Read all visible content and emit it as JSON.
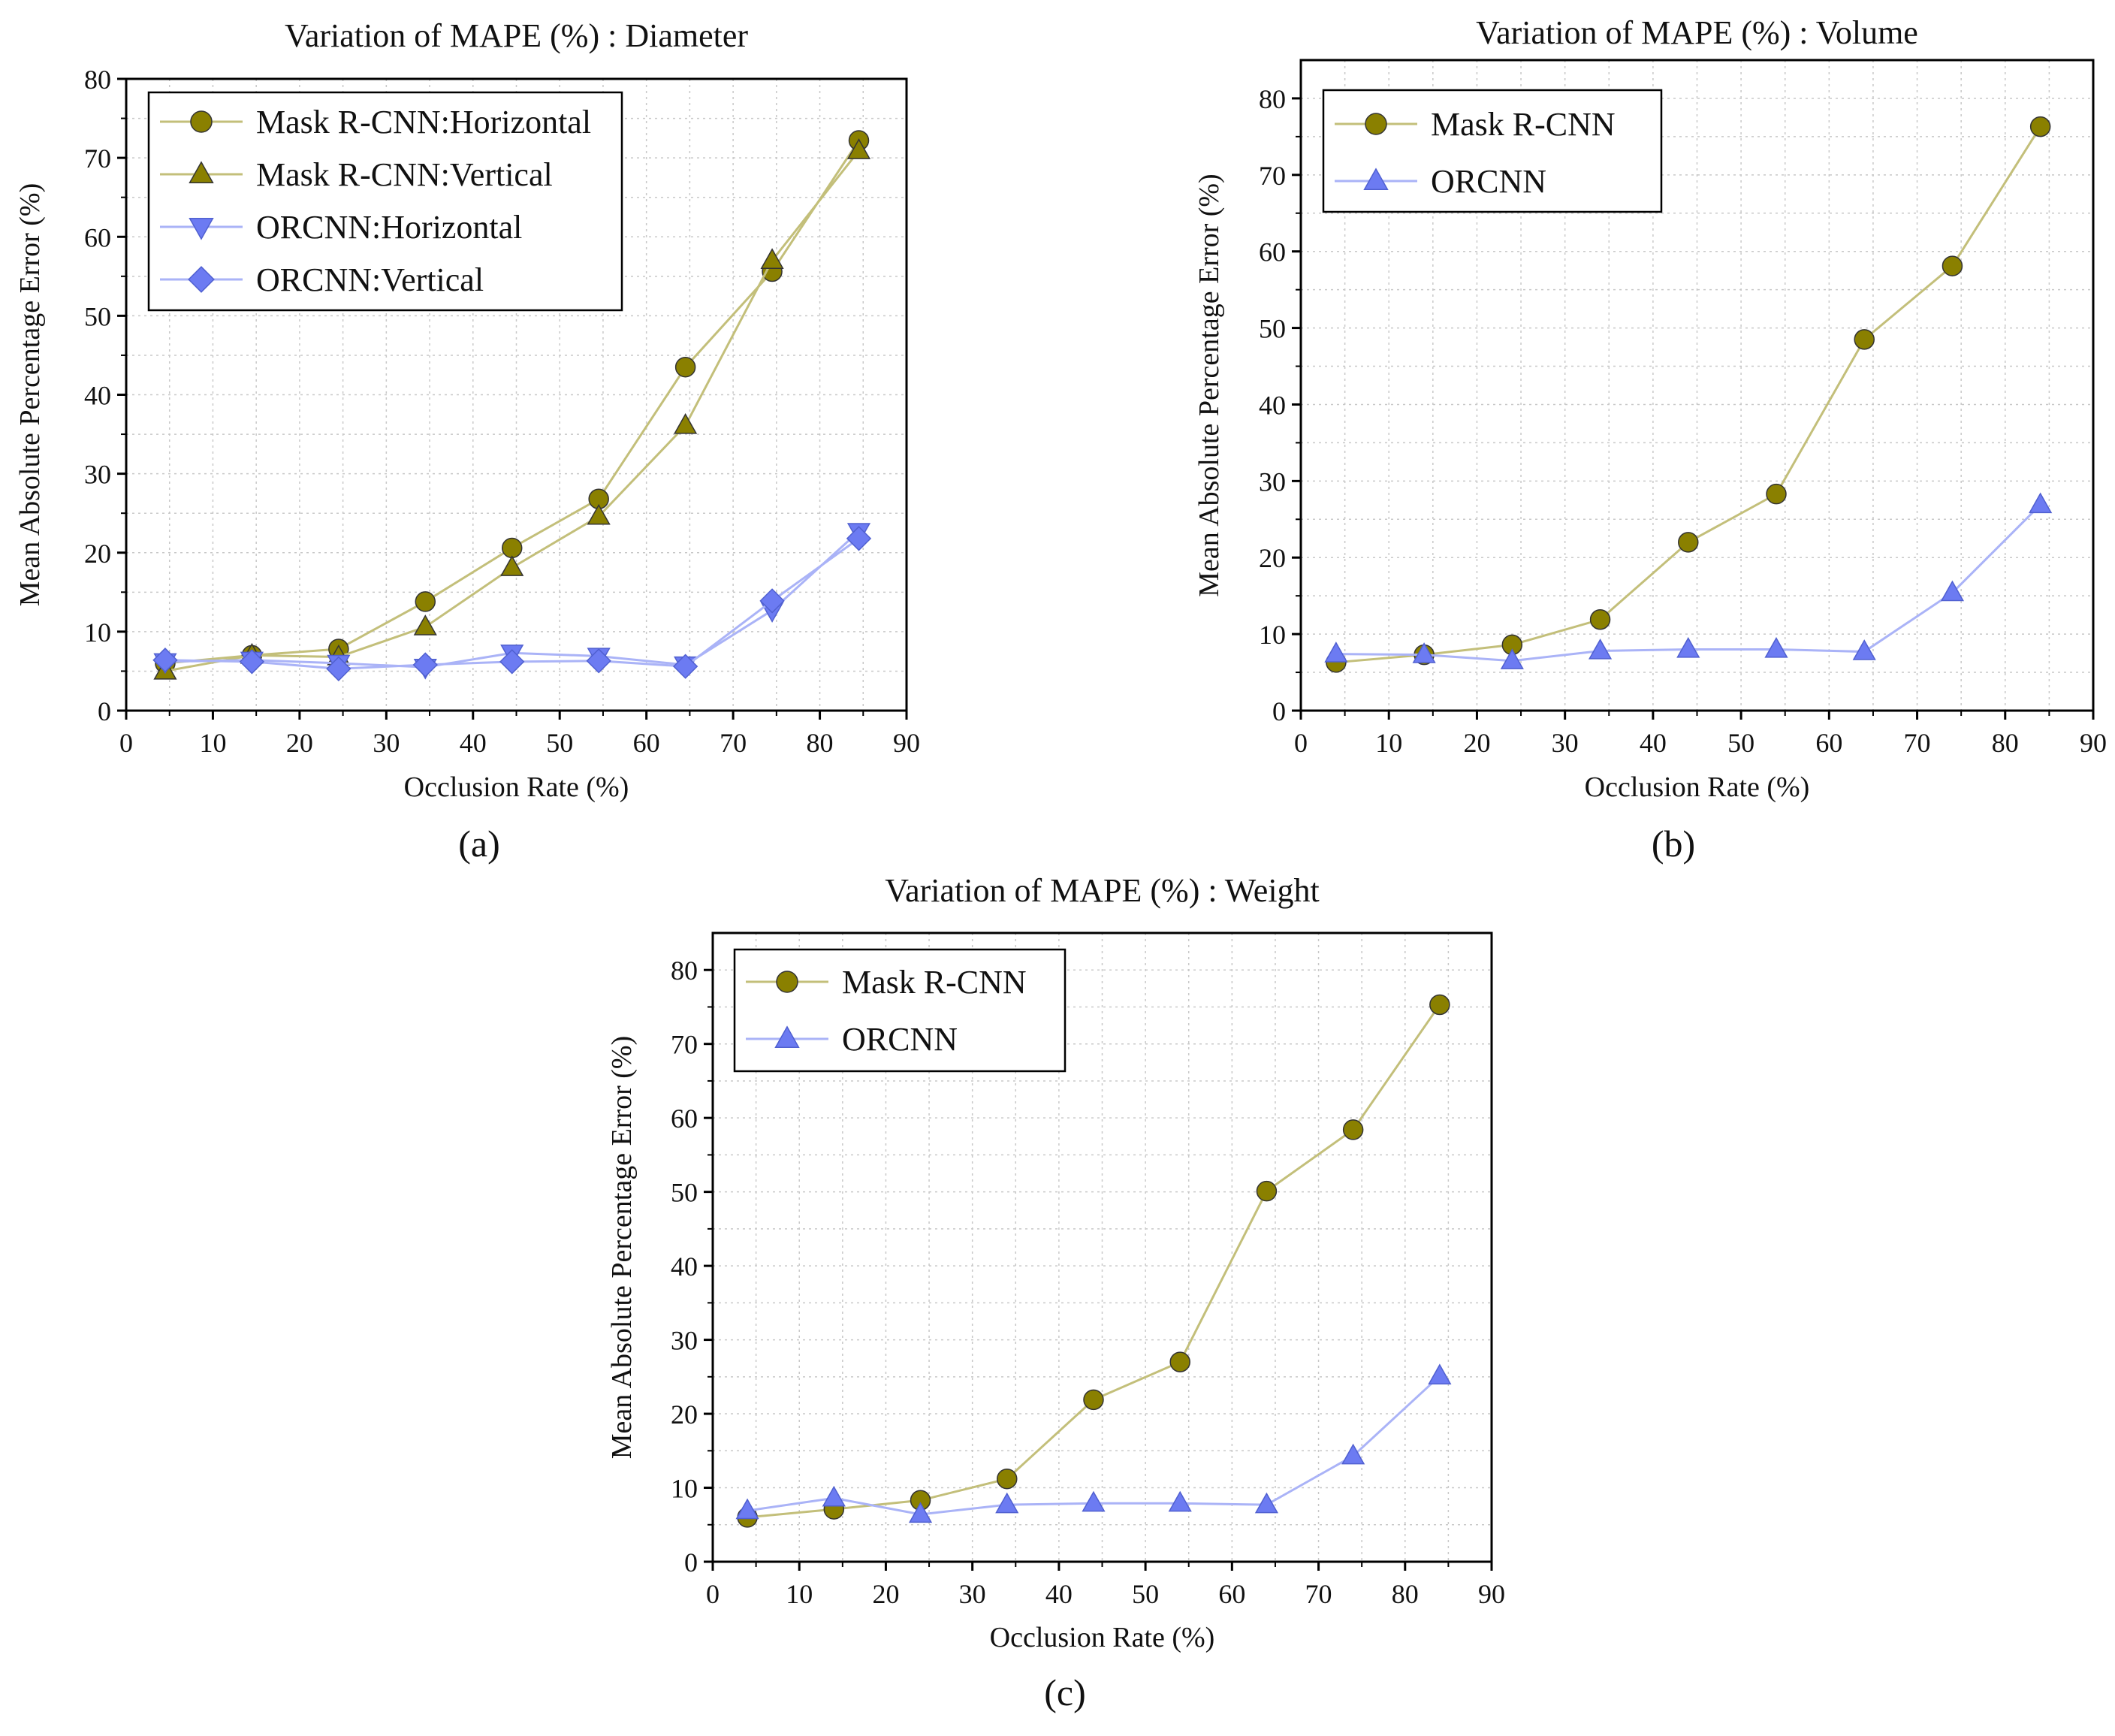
{
  "colors": {
    "mask": "#8a8000",
    "mask_line": "#c3bf7a",
    "orcnn": "#6c7bf2",
    "orcnn_line": "#aab3f7",
    "grid": "#c8c8c8"
  },
  "chart_data": [
    {
      "type": "line",
      "panel_label": "(a)",
      "title": "Variation of MAPE (%) : Diameter",
      "xlabel": "Occlusion Rate (%)",
      "ylabel": "Mean Absolute Percentage Error (%)",
      "xlim": [
        0,
        90
      ],
      "ylim": [
        0,
        80
      ],
      "xticks": [
        0,
        10,
        20,
        30,
        40,
        50,
        60,
        70,
        80,
        90
      ],
      "yticks": [
        0,
        10,
        20,
        30,
        40,
        50,
        60,
        70,
        80
      ],
      "grid": true,
      "legend_position": "top-left",
      "x": [
        4.5,
        14.5,
        24.5,
        34.5,
        44.5,
        54.5,
        64.5,
        74.5,
        84.5
      ],
      "series": [
        {
          "name": "Mask R-CNN:Horizontal",
          "marker": "circle",
          "color": "mask",
          "values": [
            6.0,
            7.0,
            7.8,
            13.8,
            20.6,
            26.8,
            43.5,
            55.6,
            72.2
          ]
        },
        {
          "name": "Mask R-CNN:Vertical",
          "marker": "triangle-up",
          "color": "mask",
          "values": [
            5.0,
            7.0,
            6.8,
            10.6,
            18.1,
            24.6,
            36.1,
            57.0,
            70.9
          ]
        },
        {
          "name": "ORCNN:Horizontal",
          "marker": "triangle-down",
          "color": "orcnn",
          "values": [
            6.2,
            6.4,
            6.0,
            5.5,
            7.3,
            6.9,
            5.8,
            12.7,
            22.7
          ]
        },
        {
          "name": "ORCNN:Vertical",
          "marker": "diamond",
          "color": "orcnn",
          "values": [
            6.4,
            6.2,
            5.3,
            5.8,
            6.2,
            6.3,
            5.6,
            13.9,
            21.8
          ]
        }
      ]
    },
    {
      "type": "line",
      "panel_label": "(b)",
      "title": "Variation of MAPE (%) : Volume",
      "xlabel": "Occlusion Rate (%)",
      "ylabel": "Mean Absolute Percentage Error (%)",
      "xlim": [
        0,
        90
      ],
      "ylim": [
        0,
        85
      ],
      "xticks": [
        0,
        10,
        20,
        30,
        40,
        50,
        60,
        70,
        80,
        90
      ],
      "yticks": [
        0,
        10,
        20,
        30,
        40,
        50,
        60,
        70,
        80
      ],
      "grid": true,
      "legend_position": "top-left",
      "x": [
        4,
        14,
        24,
        34,
        44,
        54,
        64,
        74,
        84
      ],
      "series": [
        {
          "name": "Mask R-CNN",
          "marker": "circle",
          "color": "mask",
          "values": [
            6.3,
            7.3,
            8.6,
            11.9,
            22.0,
            28.3,
            48.5,
            58.1,
            76.3
          ]
        },
        {
          "name": "ORCNN",
          "marker": "triangle-up",
          "color": "orcnn",
          "values": [
            7.4,
            7.3,
            6.5,
            7.8,
            8.0,
            8.0,
            7.7,
            15.4,
            26.9
          ]
        }
      ]
    },
    {
      "type": "line",
      "panel_label": "(c)",
      "title": "Variation of MAPE (%) : Weight",
      "xlabel": "Occlusion Rate (%)",
      "ylabel": "Mean Absolute Percentage Error (%)",
      "xlim": [
        0,
        90
      ],
      "ylim": [
        0,
        85
      ],
      "xticks": [
        0,
        10,
        20,
        30,
        40,
        50,
        60,
        70,
        80,
        90
      ],
      "yticks": [
        0,
        10,
        20,
        30,
        40,
        50,
        60,
        70,
        80
      ],
      "grid": true,
      "legend_position": "top-left",
      "x": [
        4,
        14,
        24,
        34,
        44,
        54,
        64,
        74,
        84
      ],
      "series": [
        {
          "name": "Mask R-CNN",
          "marker": "circle",
          "color": "mask",
          "values": [
            6.0,
            7.1,
            8.3,
            11.2,
            21.9,
            27.0,
            50.1,
            58.4,
            75.3
          ]
        },
        {
          "name": "ORCNN",
          "marker": "triangle-up",
          "color": "orcnn",
          "values": [
            6.9,
            8.6,
            6.4,
            7.7,
            7.9,
            7.9,
            7.7,
            14.3,
            25.1
          ]
        }
      ]
    }
  ]
}
